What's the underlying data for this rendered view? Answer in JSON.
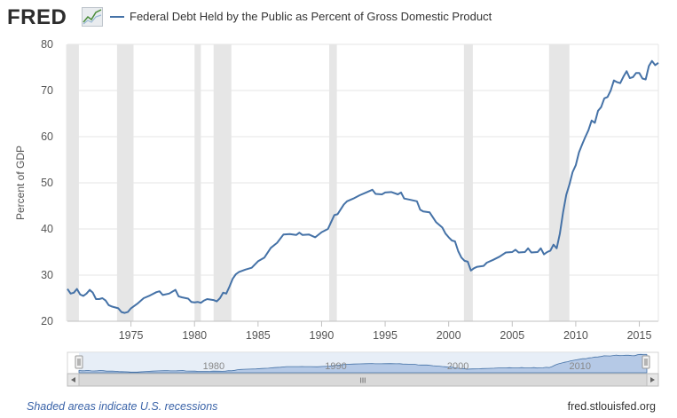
{
  "brand": {
    "logo_text": "FRED",
    "logo_icon": "fred-chart-logo-icon"
  },
  "legend": {
    "series_name": "Federal Debt Held by the Public as Percent of Gross Domestic Product"
  },
  "footer": {
    "recession_note": "Shaded areas indicate U.S. recessions",
    "source": "fred.stlouisfed.org"
  },
  "navigator": {
    "tick_labels": [
      "1980",
      "1990",
      "2000",
      "2010"
    ],
    "scroll_grip": "III"
  },
  "colors": {
    "line": "#4572A7",
    "recession": "#e6e6e6",
    "grid": "#e6e6e6",
    "navigator_fill": "#b5c9e6"
  },
  "chart_data": {
    "type": "line",
    "ylabel": "Percent of GDP",
    "ylim": [
      20,
      80
    ],
    "xlim": [
      1970.0,
      2016.5
    ],
    "x_ticks": [
      1975,
      1980,
      1985,
      1990,
      1995,
      2000,
      2005,
      2010,
      2015
    ],
    "y_ticks": [
      20,
      30,
      40,
      50,
      60,
      70,
      80
    ],
    "grid": true,
    "recessions": [
      [
        1969.9,
        1970.9
      ],
      [
        1973.9,
        1975.2
      ],
      [
        1980.0,
        1980.5
      ],
      [
        1981.5,
        1982.9
      ],
      [
        1990.6,
        1991.2
      ],
      [
        2001.2,
        2001.9
      ],
      [
        2007.9,
        2009.5
      ]
    ],
    "series": [
      {
        "values": [
          [
            1970.0,
            27.0
          ],
          [
            1970.25,
            26.0
          ],
          [
            1970.5,
            26.2
          ],
          [
            1970.75,
            27.0
          ],
          [
            1971.0,
            25.8
          ],
          [
            1971.25,
            25.5
          ],
          [
            1971.5,
            26.0
          ],
          [
            1971.75,
            26.8
          ],
          [
            1972.0,
            26.2
          ],
          [
            1972.25,
            24.8
          ],
          [
            1972.5,
            24.8
          ],
          [
            1972.75,
            25.0
          ],
          [
            1973.0,
            24.5
          ],
          [
            1973.25,
            23.5
          ],
          [
            1973.5,
            23.2
          ],
          [
            1973.75,
            23.0
          ],
          [
            1974.0,
            22.8
          ],
          [
            1974.25,
            22.0
          ],
          [
            1974.5,
            21.8
          ],
          [
            1974.75,
            22.0
          ],
          [
            1975.0,
            22.8
          ],
          [
            1975.5,
            23.8
          ],
          [
            1976.0,
            25.0
          ],
          [
            1976.5,
            25.6
          ],
          [
            1977.0,
            26.3
          ],
          [
            1977.25,
            26.5
          ],
          [
            1977.5,
            25.7
          ],
          [
            1978.0,
            26.0
          ],
          [
            1978.5,
            26.8
          ],
          [
            1978.75,
            25.4
          ],
          [
            1979.0,
            25.2
          ],
          [
            1979.5,
            24.9
          ],
          [
            1979.75,
            24.2
          ],
          [
            1980.0,
            24.1
          ],
          [
            1980.25,
            24.2
          ],
          [
            1980.5,
            24.0
          ],
          [
            1980.75,
            24.5
          ],
          [
            1981.0,
            24.8
          ],
          [
            1981.5,
            24.6
          ],
          [
            1981.75,
            24.3
          ],
          [
            1982.0,
            25.0
          ],
          [
            1982.25,
            26.2
          ],
          [
            1982.5,
            26.0
          ],
          [
            1982.75,
            27.5
          ],
          [
            1983.0,
            29.2
          ],
          [
            1983.25,
            30.2
          ],
          [
            1983.5,
            30.7
          ],
          [
            1984.0,
            31.2
          ],
          [
            1984.5,
            31.6
          ],
          [
            1985.0,
            33.0
          ],
          [
            1985.5,
            33.8
          ],
          [
            1986.0,
            35.9
          ],
          [
            1986.5,
            37.0
          ],
          [
            1987.0,
            38.8
          ],
          [
            1987.5,
            38.9
          ],
          [
            1988.0,
            38.7
          ],
          [
            1988.25,
            39.2
          ],
          [
            1988.5,
            38.7
          ],
          [
            1989.0,
            38.8
          ],
          [
            1989.5,
            38.2
          ],
          [
            1990.0,
            39.3
          ],
          [
            1990.5,
            40.0
          ],
          [
            1990.75,
            41.5
          ],
          [
            1991.0,
            43.0
          ],
          [
            1991.25,
            43.2
          ],
          [
            1991.75,
            45.3
          ],
          [
            1992.0,
            46.0
          ],
          [
            1992.5,
            46.6
          ],
          [
            1993.0,
            47.3
          ],
          [
            1993.5,
            47.9
          ],
          [
            1994.0,
            48.5
          ],
          [
            1994.25,
            47.6
          ],
          [
            1994.75,
            47.5
          ],
          [
            1995.0,
            47.9
          ],
          [
            1995.5,
            48.0
          ],
          [
            1996.0,
            47.5
          ],
          [
            1996.25,
            47.9
          ],
          [
            1996.5,
            46.6
          ],
          [
            1997.0,
            46.3
          ],
          [
            1997.5,
            46.0
          ],
          [
            1997.75,
            44.2
          ],
          [
            1998.0,
            43.8
          ],
          [
            1998.5,
            43.6
          ],
          [
            1999.0,
            41.5
          ],
          [
            1999.5,
            40.3
          ],
          [
            1999.75,
            39.0
          ],
          [
            2000.0,
            38.2
          ],
          [
            2000.25,
            37.5
          ],
          [
            2000.5,
            37.3
          ],
          [
            2000.75,
            35.2
          ],
          [
            2001.0,
            33.8
          ],
          [
            2001.25,
            33.1
          ],
          [
            2001.5,
            32.9
          ],
          [
            2001.75,
            31.0
          ],
          [
            2002.0,
            31.5
          ],
          [
            2002.25,
            31.8
          ],
          [
            2002.75,
            32.0
          ],
          [
            2003.0,
            32.7
          ],
          [
            2003.5,
            33.3
          ],
          [
            2004.0,
            34.0
          ],
          [
            2004.5,
            34.9
          ],
          [
            2005.0,
            35.0
          ],
          [
            2005.25,
            35.5
          ],
          [
            2005.5,
            34.9
          ],
          [
            2006.0,
            35.0
          ],
          [
            2006.25,
            35.8
          ],
          [
            2006.5,
            34.9
          ],
          [
            2007.0,
            35.0
          ],
          [
            2007.25,
            35.8
          ],
          [
            2007.5,
            34.5
          ],
          [
            2007.75,
            35.0
          ],
          [
            2008.0,
            35.3
          ],
          [
            2008.25,
            36.6
          ],
          [
            2008.5,
            35.8
          ],
          [
            2008.75,
            39.0
          ],
          [
            2009.0,
            43.6
          ],
          [
            2009.25,
            47.4
          ],
          [
            2009.5,
            49.6
          ],
          [
            2009.75,
            52.3
          ],
          [
            2010.0,
            53.8
          ],
          [
            2010.25,
            56.6
          ],
          [
            2010.5,
            58.3
          ],
          [
            2010.75,
            59.9
          ],
          [
            2011.0,
            61.4
          ],
          [
            2011.25,
            63.5
          ],
          [
            2011.5,
            63.0
          ],
          [
            2011.75,
            65.6
          ],
          [
            2012.0,
            66.4
          ],
          [
            2012.25,
            68.3
          ],
          [
            2012.5,
            68.6
          ],
          [
            2012.75,
            70.0
          ],
          [
            2013.0,
            72.2
          ],
          [
            2013.25,
            71.8
          ],
          [
            2013.5,
            71.6
          ],
          [
            2013.75,
            73.0
          ],
          [
            2014.0,
            74.2
          ],
          [
            2014.25,
            72.7
          ],
          [
            2014.5,
            72.9
          ],
          [
            2014.75,
            73.8
          ],
          [
            2015.0,
            73.8
          ],
          [
            2015.25,
            72.6
          ],
          [
            2015.5,
            72.4
          ],
          [
            2015.75,
            75.3
          ],
          [
            2016.0,
            76.4
          ],
          [
            2016.25,
            75.5
          ],
          [
            2016.5,
            76.0
          ]
        ]
      }
    ]
  }
}
